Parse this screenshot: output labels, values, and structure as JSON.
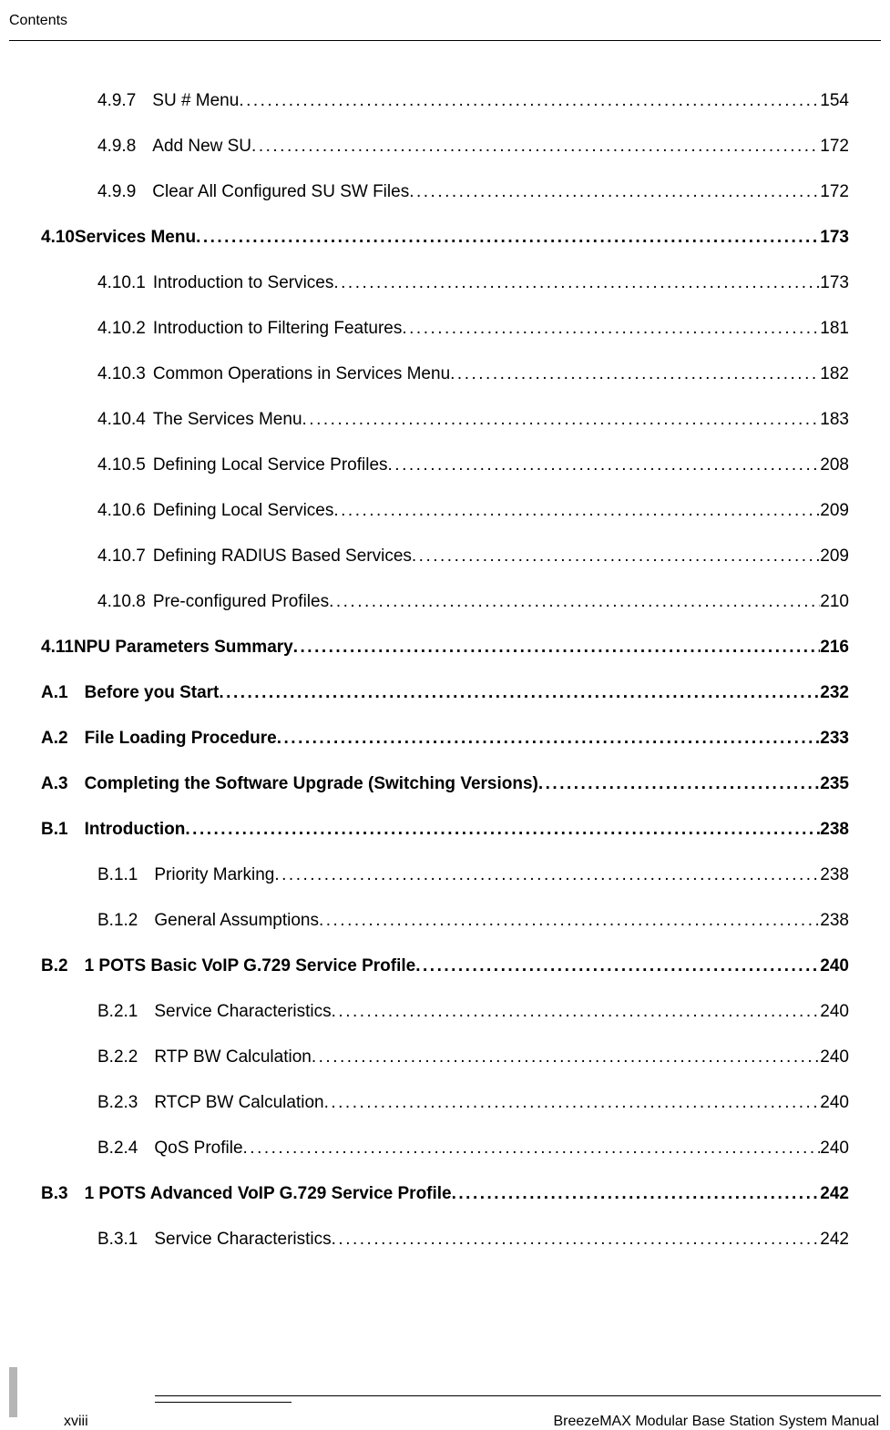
{
  "header": "Contents",
  "footer_page": "xviii",
  "footer_title": "BreezeMAX Modular Base Station System Manual",
  "toc": [
    {
      "num": "4.9.7",
      "title": "SU # Menu",
      "page": "154",
      "indent": 1,
      "bold": false
    },
    {
      "num": "4.9.8",
      "title": "Add New SU",
      "page": "172",
      "indent": 1,
      "bold": false
    },
    {
      "num": "4.9.9",
      "title": "Clear All Configured SU SW Files",
      "page": "172",
      "indent": 1,
      "bold": false
    },
    {
      "num": "4.10",
      "title": "Services Menu",
      "page": "173",
      "indent": 0,
      "bold": true,
      "nospace": true
    },
    {
      "num": "4.10.1",
      "title": "Introduction to Services",
      "page": "173",
      "indent": 1,
      "bold": false,
      "nonumspace": true
    },
    {
      "num": "4.10.2",
      "title": "Introduction to Filtering Features",
      "page": "181",
      "indent": 1,
      "bold": false,
      "nonumspace": true
    },
    {
      "num": "4.10.3",
      "title": "Common Operations in Services Menu",
      "page": "182",
      "indent": 1,
      "bold": false,
      "nonumspace": true
    },
    {
      "num": "4.10.4",
      "title": "The Services Menu",
      "page": "183",
      "indent": 1,
      "bold": false,
      "nonumspace": true
    },
    {
      "num": "4.10.5",
      "title": "Defining Local Service Profiles",
      "page": "208",
      "indent": 1,
      "bold": false,
      "nonumspace": true
    },
    {
      "num": "4.10.6",
      "title": "Defining Local Services",
      "page": "209",
      "indent": 1,
      "bold": false,
      "nonumspace": true
    },
    {
      "num": "4.10.7",
      "title": "Defining RADIUS Based Services",
      "page": "209",
      "indent": 1,
      "bold": false,
      "nonumspace": true
    },
    {
      "num": "4.10.8",
      "title": "Pre-configured Profiles",
      "page": "210",
      "indent": 1,
      "bold": false,
      "nonumspace": true
    },
    {
      "num": "4.11",
      "title": "NPU Parameters Summary",
      "page": "216",
      "indent": 0,
      "bold": true,
      "nospace": true
    },
    {
      "num": "A.1",
      "title": "Before you Start",
      "page": "232",
      "indent": 0,
      "bold": true
    },
    {
      "num": "A.2",
      "title": "File Loading Procedure",
      "page": "233",
      "indent": 0,
      "bold": true
    },
    {
      "num": "A.3",
      "title": "Completing the Software Upgrade (Switching Versions)",
      "page": "235",
      "indent": 0,
      "bold": true
    },
    {
      "num": "B.1",
      "title": "Introduction",
      "page": "238",
      "indent": 0,
      "bold": true
    },
    {
      "num": "B.1.1",
      "title": "Priority Marking",
      "page": "238",
      "indent": 1,
      "bold": false
    },
    {
      "num": "B.1.2",
      "title": "General Assumptions",
      "page": "238",
      "indent": 1,
      "bold": false
    },
    {
      "num": "B.2",
      "title": "1 POTS Basic VoIP G.729 Service Profile",
      "page": "240",
      "indent": 0,
      "bold": true
    },
    {
      "num": "B.2.1",
      "title": "Service Characteristics",
      "page": "240",
      "indent": 1,
      "bold": false
    },
    {
      "num": "B.2.2",
      "title": "RTP BW Calculation",
      "page": "240",
      "indent": 1,
      "bold": false
    },
    {
      "num": "B.2.3",
      "title": "RTCP BW Calculation",
      "page": "240",
      "indent": 1,
      "bold": false
    },
    {
      "num": "B.2.4",
      "title": "QoS Profile",
      "page": "240",
      "indent": 1,
      "bold": false
    },
    {
      "num": "B.3",
      "title": "1 POTS Advanced VoIP G.729 Service Profile",
      "page": "242",
      "indent": 0,
      "bold": true
    },
    {
      "num": "B.3.1",
      "title": "Service Characteristics",
      "page": "242",
      "indent": 1,
      "bold": false
    }
  ]
}
